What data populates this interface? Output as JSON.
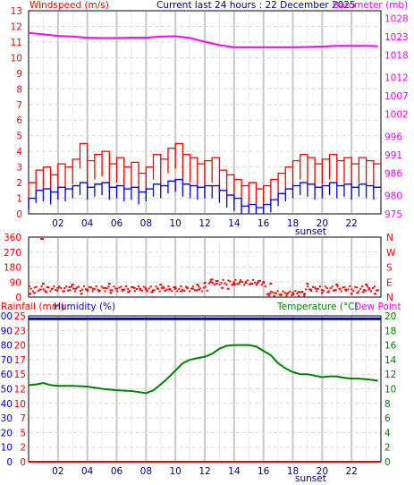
{
  "header": {
    "wind_label": "Windspeed (m/s)",
    "title": "Current last 24 hours : 22 December 2025",
    "baro_label": "Barometer (mb)"
  },
  "footer": {
    "sunset_top": "sunset",
    "sunset_bottom": "sunset"
  },
  "colors": {
    "wind_gust": "#ff0000",
    "wind_avg": "#0000ff",
    "barometer": "#ff00ff",
    "direction": "#ff0000",
    "rainfall": "#ff0000",
    "humidity": "#0000cc",
    "temperature": "#008000",
    "dewpoint": "#ff00ff",
    "grid": "#d9d9d9"
  },
  "chart_data": [
    {
      "type": "line",
      "name": "wind-and-barometer",
      "x_ticks": [
        "02",
        "04",
        "06",
        "08",
        "10",
        "12",
        "14",
        "16",
        "18",
        "20",
        "22"
      ],
      "x_range_hours": [
        0,
        24
      ],
      "y_left_range": [
        0,
        13
      ],
      "y_left_ticks": [
        0,
        1,
        2,
        3,
        4,
        5,
        6,
        7,
        8,
        9,
        10,
        11,
        12,
        13
      ],
      "y_right_range": [
        975,
        1030
      ],
      "y_right_ticks": [
        975,
        980,
        986,
        991,
        996,
        1002,
        1007,
        1012,
        1018,
        1023,
        1028
      ],
      "grid": true,
      "series": [
        {
          "name": "Windspeed (m/s)",
          "axis": "left",
          "style": "gust",
          "x": [
            0,
            0.5,
            1,
            1.5,
            2,
            2.5,
            3,
            3.5,
            4,
            4.5,
            5,
            5.5,
            6,
            6.5,
            7,
            7.5,
            8,
            8.5,
            9,
            9.5,
            10,
            10.5,
            11,
            11.5,
            12,
            12.5,
            13,
            13.5,
            14,
            14.5,
            15,
            15.5,
            16,
            16.5,
            17,
            17.5,
            18,
            18.5,
            19,
            19.5,
            20,
            20.5,
            21,
            21.5,
            22,
            22.5,
            23,
            23.5
          ],
          "y": [
            2,
            2.8,
            3,
            2.5,
            3.2,
            3,
            3.5,
            4.5,
            3.4,
            3.8,
            4,
            3.2,
            3.6,
            3,
            3.3,
            2.6,
            3,
            3.8,
            3.5,
            4.2,
            4.5,
            3.8,
            3.6,
            3.2,
            3.4,
            3.6,
            2.8,
            2.5,
            2.2,
            1.8,
            2,
            1.6,
            1.8,
            2.2,
            2.6,
            3,
            3.4,
            3.8,
            3.6,
            3.2,
            3.5,
            3.8,
            3.4,
            3.6,
            3.2,
            3.6,
            3.4,
            3.2
          ]
        },
        {
          "name": "Average wind",
          "axis": "left",
          "style": "average",
          "x": [
            0,
            0.5,
            1,
            1.5,
            2,
            2.5,
            3,
            3.5,
            4,
            4.5,
            5,
            5.5,
            6,
            6.5,
            7,
            7.5,
            8,
            8.5,
            9,
            9.5,
            10,
            10.5,
            11,
            11.5,
            12,
            12.5,
            13,
            13.5,
            14,
            14.5,
            15,
            15.5,
            16,
            16.5,
            17,
            17.5,
            18,
            18.5,
            19,
            19.5,
            20,
            20.5,
            21,
            21.5,
            22,
            22.5,
            23,
            23.5
          ],
          "y": [
            1,
            1.5,
            1.6,
            1.4,
            1.7,
            1.6,
            1.8,
            2,
            1.7,
            1.9,
            2,
            1.7,
            1.8,
            1.6,
            1.7,
            1.4,
            1.6,
            1.9,
            1.8,
            2.1,
            2.2,
            1.9,
            1.8,
            1.7,
            1.8,
            1.8,
            1.5,
            1.2,
            1,
            0.5,
            0.6,
            0.4,
            0.6,
            0.9,
            1.3,
            1.6,
            1.8,
            2,
            1.9,
            1.7,
            1.8,
            2,
            1.8,
            1.9,
            1.7,
            1.9,
            1.8,
            1.7
          ]
        },
        {
          "name": "Barometer (mb)",
          "axis": "right",
          "style": "barometer",
          "x": [
            0,
            1,
            2,
            3,
            4,
            5,
            6,
            7,
            8,
            9,
            10,
            11,
            12,
            13,
            14,
            15,
            16,
            17,
            18,
            19,
            20,
            21,
            22,
            23,
            23.8
          ],
          "y": [
            1024,
            1023.6,
            1023.2,
            1023,
            1022.7,
            1022.6,
            1022.6,
            1022.7,
            1022.7,
            1023,
            1023.1,
            1022.6,
            1021.6,
            1020.7,
            1020.1,
            1020.1,
            1020.1,
            1020.1,
            1020.1,
            1020.2,
            1020.3,
            1020.5,
            1020.5,
            1020.5,
            1020.4
          ]
        }
      ]
    },
    {
      "type": "scatter",
      "name": "wind-direction",
      "x_ticks": [],
      "x_range_hours": [
        0,
        24
      ],
      "y_left_range": [
        0,
        360
      ],
      "y_left_ticks": [
        0,
        90,
        180,
        270,
        360
      ],
      "y_right_labels": [
        "N",
        "E",
        "S",
        "W",
        "N"
      ],
      "grid": true,
      "series": [
        {
          "name": "Wind direction",
          "x": [
            0.1,
            0.4,
            0.8,
            1.2,
            1.6,
            2,
            2.4,
            2.8,
            3.2,
            3.6,
            4,
            4.4,
            4.8,
            5.2,
            5.6,
            6,
            6.4,
            6.8,
            7.2,
            7.6,
            8,
            8.4,
            8.8,
            9.2,
            9.6,
            10,
            10.4,
            10.8,
            11.2,
            11.6,
            12,
            12.4,
            12.8,
            13.2,
            13.6,
            14,
            14.4,
            14.8,
            15.2,
            15.6,
            16,
            16.4,
            16.8,
            17.2,
            17.6,
            18,
            18.4,
            18.8,
            19.2,
            19.6,
            20,
            20.4,
            20.8,
            21.2,
            21.6,
            22,
            22.4,
            22.8,
            23.2,
            23.6,
            1,
            3,
            5.5,
            9,
            11.5,
            12.5,
            14,
            16.5,
            19,
            21,
            23
          ],
          "y": [
            20,
            25,
            45,
            30,
            50,
            55,
            35,
            60,
            50,
            20,
            45,
            50,
            35,
            55,
            25,
            50,
            45,
            30,
            55,
            50,
            45,
            30,
            50,
            55,
            45,
            50,
            35,
            55,
            50,
            45,
            85,
            90,
            80,
            55,
            50,
            85,
            90,
            85,
            80,
            85,
            90,
            20,
            25,
            15,
            20,
            25,
            30,
            20,
            45,
            50,
            25,
            30,
            40,
            50,
            45,
            20,
            25,
            30,
            45,
            20,
            80,
            75,
            80,
            75,
            75,
            105,
            75,
            80,
            80,
            75,
            75
          ]
        }
      ]
    },
    {
      "type": "line",
      "name": "rain-humidity-temperature",
      "x_ticks": [
        "02",
        "04",
        "06",
        "08",
        "10",
        "12",
        "14",
        "16",
        "18",
        "20",
        "22"
      ],
      "x_range_hours": [
        0,
        24
      ],
      "y_left_range": [
        0,
        100
      ],
      "y_left_ticks": [
        0,
        10,
        20,
        30,
        40,
        50,
        60,
        70,
        80,
        90,
        100
      ],
      "y_left_inner_ticks": [
        "0",
        "2",
        "5",
        "7",
        "10",
        "12",
        "15",
        "17",
        "20",
        "23",
        "25"
      ],
      "y_right_range": [
        0,
        20
      ],
      "y_right_ticks": [
        0,
        2,
        4,
        6,
        8,
        10,
        12,
        14,
        16,
        18,
        20
      ],
      "grid": true,
      "series": [
        {
          "name": "Rainfall (mm)",
          "axis": "left",
          "x": [
            0,
            24
          ],
          "y": [
            0,
            0
          ]
        },
        {
          "name": "Humidity (%)",
          "axis": "left",
          "x": [
            0,
            24
          ],
          "y": [
            98,
            98
          ]
        },
        {
          "name": "Temperature (°C)",
          "axis": "right",
          "x": [
            0,
            0.5,
            1,
            1.5,
            2,
            3,
            4,
            5,
            6,
            7,
            8,
            8.5,
            9,
            9.5,
            10,
            10.5,
            11,
            11.5,
            12,
            12.5,
            13,
            13.5,
            14,
            14.5,
            15,
            15.5,
            16,
            16.5,
            17,
            17.5,
            18,
            18.5,
            19,
            19.5,
            20,
            20.5,
            21,
            21.5,
            22,
            22.5,
            23,
            23.5,
            23.8
          ],
          "y": [
            10.5,
            10.6,
            10.8,
            10.5,
            10.4,
            10.4,
            10.3,
            10.0,
            9.8,
            9.7,
            9.4,
            9.8,
            10.6,
            11.5,
            12.5,
            13.5,
            14.0,
            14.2,
            14.4,
            14.8,
            15.5,
            15.9,
            16.0,
            16.0,
            16.0,
            15.8,
            15.2,
            14.6,
            13.5,
            12.8,
            12.3,
            12.0,
            12.0,
            11.8,
            11.6,
            11.7,
            11.7,
            11.5,
            11.4,
            11.4,
            11.3,
            11.2,
            11.1
          ]
        },
        {
          "name": "Dew Point",
          "axis": "right",
          "x": [],
          "y": []
        }
      ]
    }
  ]
}
